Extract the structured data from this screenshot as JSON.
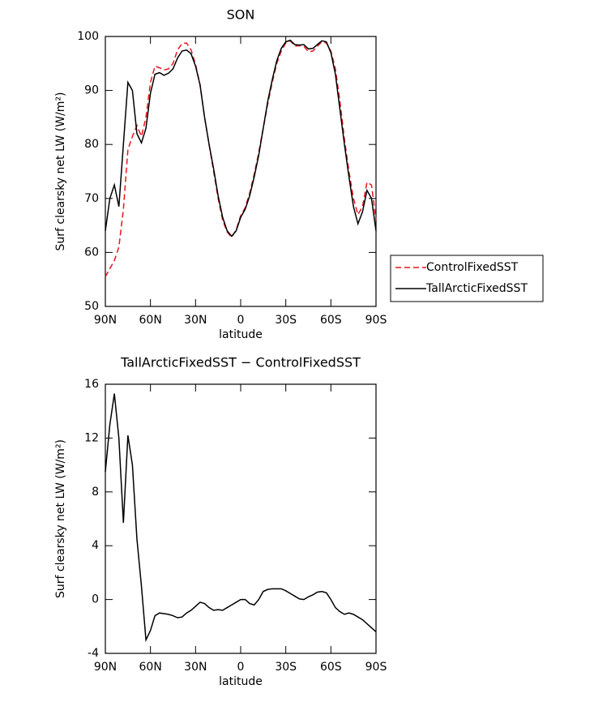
{
  "chart_data": [
    {
      "type": "line",
      "title": "SON",
      "xlabel": "latitude",
      "ylabel": "Surf clearsky net LW (W/m²)",
      "x": [
        90,
        87,
        84,
        81,
        78,
        75,
        72,
        69,
        66,
        63,
        60,
        57,
        54,
        51,
        48,
        45,
        42,
        39,
        36,
        33,
        30,
        27,
        24,
        21,
        18,
        15,
        12,
        9,
        6,
        3,
        0,
        -3,
        -6,
        -9,
        -12,
        -15,
        -18,
        -21,
        -24,
        -27,
        -30,
        -33,
        -36,
        -39,
        -42,
        -45,
        -48,
        -51,
        -54,
        -57,
        -60,
        -63,
        -66,
        -69,
        -72,
        -75,
        -78,
        -81,
        -84,
        -87,
        -90
      ],
      "xlim": [
        90,
        -90
      ],
      "xticks": [
        {
          "value": 90,
          "label": "90N"
        },
        {
          "value": 60,
          "label": "60N"
        },
        {
          "value": 30,
          "label": "30N"
        },
        {
          "value": 0,
          "label": "0"
        },
        {
          "value": -30,
          "label": "30S"
        },
        {
          "value": -60,
          "label": "60S"
        },
        {
          "value": -90,
          "label": "90S"
        }
      ],
      "ylim": [
        50,
        100
      ],
      "yticks": [
        50,
        60,
        70,
        80,
        90,
        100
      ],
      "legend": "right",
      "series": [
        {
          "name": "ControlFixedSST",
          "color": "#e8141c",
          "dash": true,
          "values": [
            55.5,
            57,
            58.5,
            61,
            68,
            79,
            81.5,
            83.5,
            81.5,
            85,
            91.5,
            94.5,
            94.2,
            93.8,
            94,
            95,
            97.5,
            98.7,
            98.8,
            97.5,
            94.8,
            91,
            85,
            80,
            75,
            70,
            66,
            63.8,
            62.8,
            64.2,
            66.8,
            68.3,
            71,
            74.5,
            78.5,
            83,
            87.5,
            91.5,
            95,
            97.3,
            98.8,
            99.2,
            98.2,
            98.3,
            98.2,
            97.2,
            97.3,
            98.2,
            99,
            98.8,
            97.3,
            94,
            88,
            81,
            75,
            70,
            67,
            68.5,
            73,
            72.5,
            66
          ]
        },
        {
          "name": "TallArcticFixedSST",
          "color": "#000000",
          "dash": false,
          "values": [
            64,
            70,
            72.5,
            68.5,
            80,
            91.5,
            90,
            82,
            80.3,
            83,
            89.5,
            93,
            93.3,
            92.8,
            93.2,
            94,
            96,
            97.3,
            97.5,
            96.8,
            94.5,
            91,
            85,
            80,
            75.5,
            70.5,
            66.5,
            64,
            63,
            64,
            66.5,
            68,
            70.5,
            74,
            78,
            83,
            88,
            92,
            95.5,
            97.8,
            99,
            99.3,
            98.5,
            98.4,
            98.5,
            97.7,
            97.8,
            98.5,
            99.2,
            99,
            97,
            93,
            86.5,
            80,
            74,
            68.5,
            65.3,
            67.5,
            71.5,
            70,
            64
          ]
        }
      ]
    },
    {
      "type": "line",
      "title": "TallArcticFixedSST − ControlFixedSST",
      "xlabel": "latitude",
      "ylabel": "Surf clearsky net LW (W/m²)",
      "x": [
        90,
        87,
        84,
        81,
        78,
        75,
        72,
        69,
        66,
        63,
        60,
        57,
        54,
        51,
        48,
        45,
        42,
        39,
        36,
        33,
        30,
        27,
        24,
        21,
        18,
        15,
        12,
        9,
        6,
        3,
        0,
        -3,
        -6,
        -9,
        -12,
        -15,
        -18,
        -21,
        -24,
        -27,
        -30,
        -33,
        -36,
        -39,
        -42,
        -45,
        -48,
        -51,
        -54,
        -57,
        -60,
        -63,
        -66,
        -69,
        -72,
        -75,
        -78,
        -81,
        -84,
        -87,
        -90
      ],
      "xlim": [
        90,
        -90
      ],
      "xticks": [
        {
          "value": 90,
          "label": "90N"
        },
        {
          "value": 60,
          "label": "60N"
        },
        {
          "value": 30,
          "label": "30N"
        },
        {
          "value": 0,
          "label": "0"
        },
        {
          "value": -30,
          "label": "30S"
        },
        {
          "value": -60,
          "label": "60S"
        },
        {
          "value": -90,
          "label": "90S"
        }
      ],
      "ylim": [
        -4,
        16
      ],
      "yticks": [
        -4,
        0,
        4,
        8,
        12,
        16
      ],
      "color": "#000000",
      "values": [
        9.5,
        13,
        15.3,
        12,
        5.7,
        12.2,
        10,
        4.5,
        1,
        -3,
        -2.3,
        -1.2,
        -1,
        -1.05,
        -1.1,
        -1.2,
        -1.35,
        -1.3,
        -1,
        -0.8,
        -0.5,
        -0.2,
        -0.3,
        -0.6,
        -0.8,
        -0.75,
        -0.8,
        -0.6,
        -0.4,
        -0.2,
        0,
        0,
        -0.3,
        -0.4,
        0,
        0.6,
        0.75,
        0.8,
        0.8,
        0.8,
        0.65,
        0.45,
        0.25,
        0.05,
        0,
        0.2,
        0.35,
        0.55,
        0.6,
        0.5,
        0,
        -0.6,
        -0.9,
        -1.1,
        -1,
        -1.1,
        -1.3,
        -1.5,
        -1.8,
        -2.1,
        -2.4
      ]
    }
  ]
}
